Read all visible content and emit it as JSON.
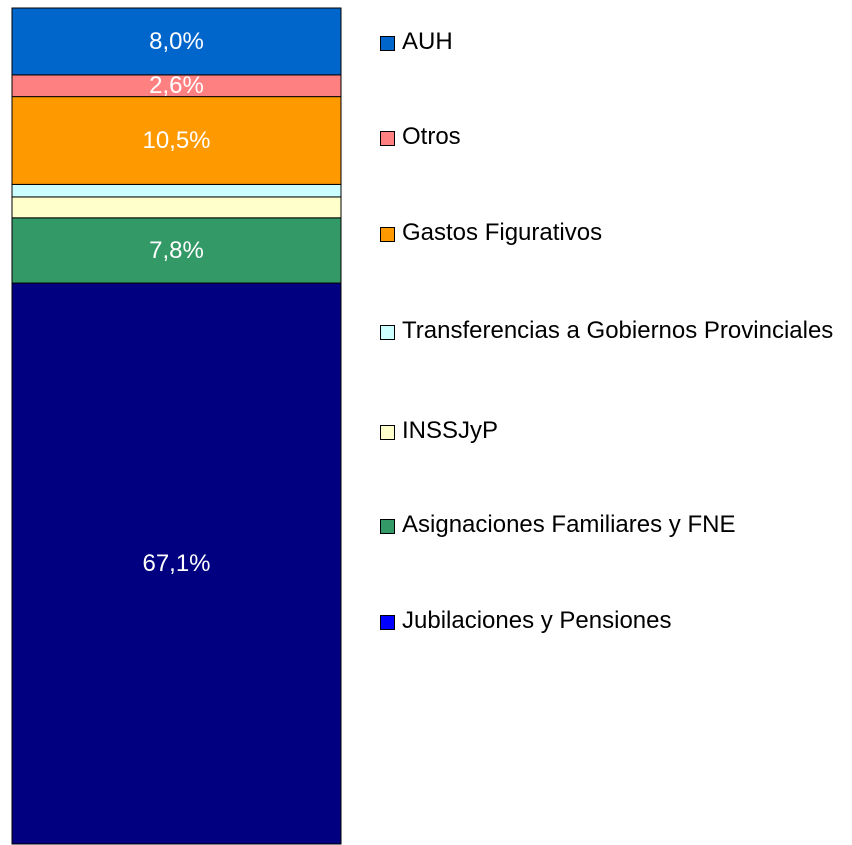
{
  "chart_data": {
    "type": "stacked_bar",
    "categories": [
      null
    ],
    "series": [
      {
        "name": "Jubilaciones y Pensiones",
        "color": "#000080",
        "values": [
          67.1
        ],
        "value_labels": [
          "67,1%"
        ]
      },
      {
        "name": "Asignaciones Familiares y FNE",
        "color": "#339966",
        "values": [
          7.8
        ],
        "value_labels": [
          "7,8%"
        ]
      },
      {
        "name": "INSSJyP",
        "color": "#ffffcc",
        "values": [
          2.5
        ],
        "value_labels": [
          null
        ]
      },
      {
        "name": "Transferencias a Gobiernos Provinciales",
        "color": "#ccffff",
        "values": [
          1.5
        ],
        "value_labels": [
          null
        ]
      },
      {
        "name": "Gastos Figurativos",
        "color": "#ff9900",
        "values": [
          10.5
        ],
        "value_labels": [
          "10,5%"
        ]
      },
      {
        "name": "Otros",
        "color": "#ff8080",
        "values": [
          2.6
        ],
        "value_labels": [
          "2,6%"
        ]
      },
      {
        "name": "AUH",
        "color": "#0066cc",
        "values": [
          8.0
        ],
        "value_labels": [
          "8,0%"
        ]
      }
    ]
  }
}
